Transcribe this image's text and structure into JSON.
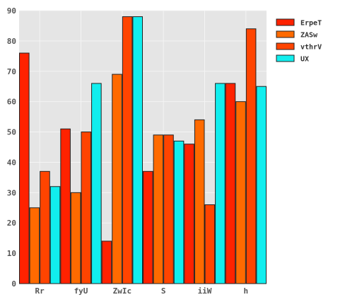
{
  "chart_data": {
    "type": "bar",
    "categories": [
      "Rr",
      "fyU",
      "ZwIc",
      "S",
      "iiW",
      "h"
    ],
    "series": [
      {
        "name": "ErpeT",
        "color": "#ff2200",
        "values": [
          76,
          51,
          14,
          37,
          46,
          66
        ]
      },
      {
        "name": "ZASw",
        "color": "#ff6a00",
        "values": [
          25,
          30,
          69,
          49,
          54,
          60
        ]
      },
      {
        "name": "vthrV",
        "color": "#ff4400",
        "values": [
          37,
          50,
          88,
          49,
          26,
          84
        ]
      },
      {
        "name": "UX",
        "color": "#11eeee",
        "values": [
          32,
          66,
          88,
          47,
          66,
          65
        ]
      }
    ],
    "title": "",
    "xlabel": "",
    "ylabel": "",
    "ylim": [
      0,
      90
    ],
    "yticks": [
      0,
      10,
      20,
      30,
      40,
      50,
      60,
      70,
      80,
      90
    ],
    "grid": true,
    "legend_position": "top-right-outside",
    "background": "#e5e5e5"
  }
}
